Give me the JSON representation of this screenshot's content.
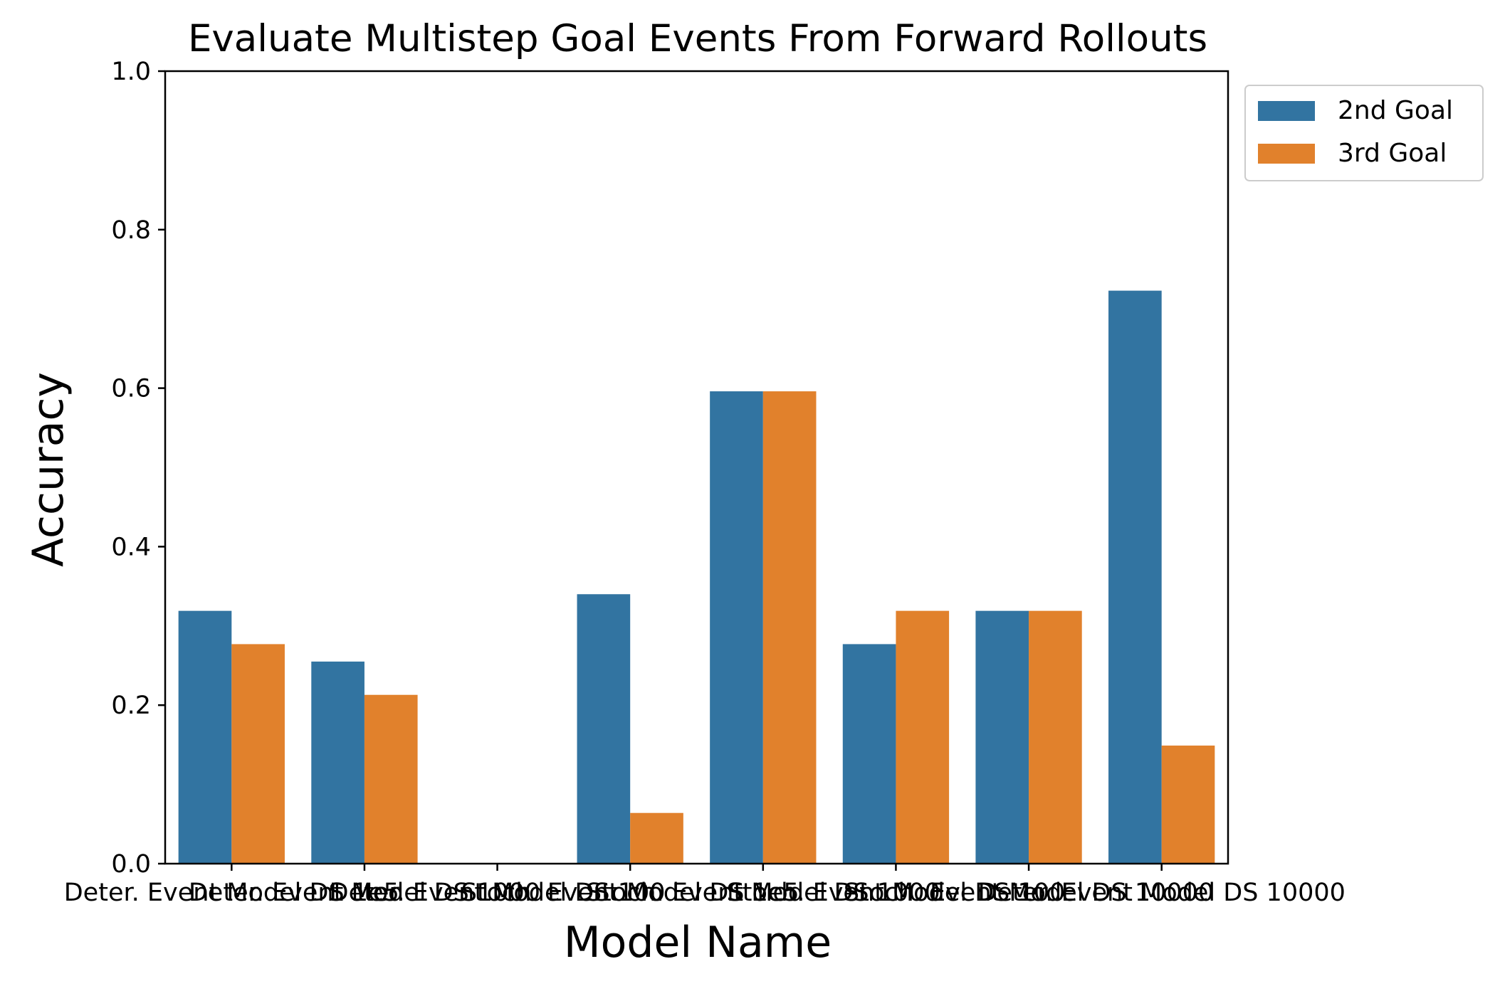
{
  "chart_data": {
    "type": "bar",
    "title": "Evaluate Multistep Goal Events From Forward Rollouts",
    "xlabel": "Model Name",
    "ylabel": "Accuracy",
    "ylim": [
      0,
      1.0
    ],
    "yticks": [
      "0.0",
      "0.2",
      "0.4",
      "0.6",
      "0.8",
      "1.0"
    ],
    "grid": false,
    "legend_position": "outside-top-right",
    "categories": [
      "Deter. Event Model DS 1e5",
      "Deter. Event Model DS 1000",
      "Deter. Event Model DS 100",
      "Stoch. Event Model DS 1e5",
      "Stoch. Event Model DS 1000",
      "Stoch. Event Model DS 100",
      "Stoch. Event Model DS 10000",
      "Deter. Event Model DS 10000"
    ],
    "series": [
      {
        "name": "2nd Goal",
        "color": "#3274a1",
        "values": [
          0.319,
          0.255,
          0.0,
          0.34,
          0.596,
          0.277,
          0.319,
          0.723
        ]
      },
      {
        "name": "3rd Goal",
        "color": "#e1812c",
        "values": [
          0.277,
          0.213,
          0.0,
          0.064,
          0.596,
          0.319,
          0.319,
          0.149
        ]
      }
    ]
  }
}
